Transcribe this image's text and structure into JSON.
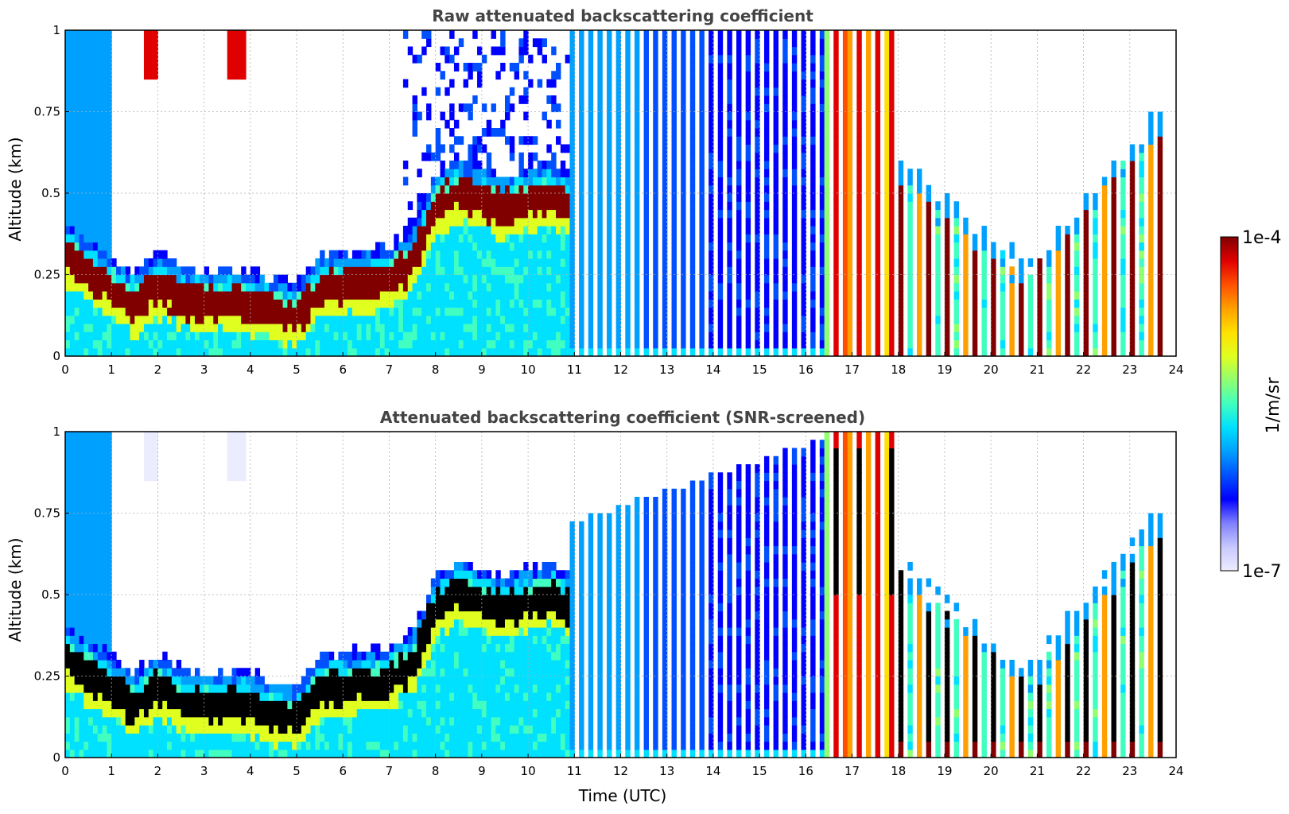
{
  "figure": {
    "xlabel": "Time (UTC)",
    "colorbar": {
      "label": "1/m/sr",
      "max_label": "1e-4",
      "min_label": "1e-7",
      "scale": "log",
      "range": [
        1e-07,
        0.0001
      ],
      "colormap": [
        "#ececff",
        "#c8c8ff",
        "#7f7fff",
        "#0000ff",
        "#0050ff",
        "#00a0ff",
        "#00e0ff",
        "#40ffc0",
        "#90ff70",
        "#e0ff20",
        "#ffe000",
        "#ffa000",
        "#ff5000",
        "#e00000",
        "#800000"
      ]
    }
  },
  "chart_data": [
    {
      "type": "heatmap",
      "id": "raw",
      "title": "Raw attenuated backscattering coefficient",
      "xlabel": "",
      "ylabel": "Altitude (km)",
      "xlim": [
        0,
        24
      ],
      "ylim": [
        0,
        1
      ],
      "xticks": [
        "0",
        "1",
        "2",
        "3",
        "4",
        "5",
        "6",
        "7",
        "8",
        "9",
        "10",
        "11",
        "12",
        "13",
        "14",
        "15",
        "16",
        "17",
        "18",
        "19",
        "20",
        "21",
        "22",
        "23",
        "24"
      ],
      "yticks": [
        "0",
        "0.25",
        "0.5",
        "0.75",
        "1"
      ],
      "grid": true,
      "screened": false,
      "layer_top_km": {
        "time_utc": [
          0,
          1,
          1.5,
          2,
          2.5,
          3,
          3.5,
          4,
          4.5,
          5,
          5.5,
          6,
          6.5,
          7,
          7.5,
          8,
          8.5,
          9,
          9.5,
          10,
          10.5,
          10.9
        ],
        "altitude_km": [
          0.35,
          0.25,
          0.2,
          0.26,
          0.22,
          0.2,
          0.21,
          0.2,
          0.18,
          0.16,
          0.25,
          0.26,
          0.27,
          0.28,
          0.33,
          0.5,
          0.55,
          0.52,
          0.5,
          0.52,
          0.54,
          0.5
        ]
      },
      "peak_value_1_per_m_per_sr": 0.0001,
      "background_value_1_per_m_per_sr": 1e-06
    },
    {
      "type": "heatmap",
      "id": "screened",
      "title": "Attenuated backscattering coefficient (SNR-screened)",
      "xlabel": "Time (UTC)",
      "ylabel": "Altitude (km)",
      "xlim": [
        0,
        24
      ],
      "ylim": [
        0,
        1
      ],
      "xticks": [
        "0",
        "1",
        "2",
        "3",
        "4",
        "5",
        "6",
        "7",
        "8",
        "9",
        "10",
        "11",
        "12",
        "13",
        "14",
        "15",
        "16",
        "17",
        "18",
        "19",
        "20",
        "21",
        "22",
        "23",
        "24"
      ],
      "yticks": [
        "0",
        "0.25",
        "0.5",
        "0.75",
        "1"
      ],
      "grid": true,
      "screened": true,
      "saturated_color": "#000000"
    }
  ]
}
